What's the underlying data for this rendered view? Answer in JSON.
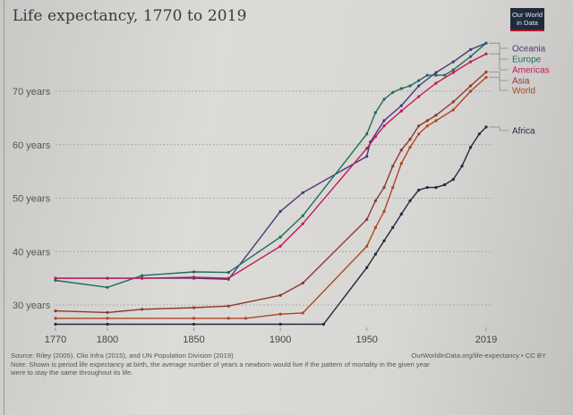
{
  "header": {
    "title": "Life expectancy, 1770 to 2019",
    "logo_line1": "Our World",
    "logo_line2": "in Data"
  },
  "footer": {
    "source": "Source: Riley (2005), Clio Infra (2015), and UN Population Division (2019)",
    "url": "OurWorldInData.org/life-expectancy • CC BY",
    "note_line1": "Note: Shown is period life expectancy at birth, the average number of years a newborn would live if the pattern of mortality in the given year",
    "note_line2": "were to stay the same throughout its life."
  },
  "chart_data": {
    "type": "line",
    "title": "Life expectancy, 1770 to 2019",
    "xlabel": "",
    "ylabel": "",
    "xlim": [
      1770,
      2019
    ],
    "ylim": [
      26,
      80
    ],
    "x_ticks": [
      1770,
      1800,
      1850,
      1900,
      1950,
      2019
    ],
    "y_ticks": [
      30,
      40,
      50,
      60,
      70
    ],
    "y_tick_labels": [
      "30 years",
      "40 years",
      "50 years",
      "60 years",
      "70 years"
    ],
    "grid": "horizontal dashed",
    "legend": "right (line-end labels)",
    "series": [
      {
        "name": "Oceania",
        "color": "#4a3a7a",
        "points": [
          [
            1770,
            35.0
          ],
          [
            1800,
            35.0
          ],
          [
            1820,
            35.0
          ],
          [
            1850,
            35.0
          ],
          [
            1870,
            34.8
          ],
          [
            1900,
            47.5
          ],
          [
            1913,
            51.0
          ],
          [
            1950,
            57.8
          ],
          [
            1952,
            60.5
          ],
          [
            1960,
            64.5
          ],
          [
            1970,
            67.3
          ],
          [
            1980,
            71.0
          ],
          [
            1990,
            73.5
          ],
          [
            2000,
            75.5
          ],
          [
            2010,
            77.8
          ],
          [
            2019,
            79.0
          ]
        ]
      },
      {
        "name": "Europe",
        "color": "#1f6b5c",
        "points": [
          [
            1770,
            34.6
          ],
          [
            1800,
            33.3
          ],
          [
            1820,
            35.5
          ],
          [
            1850,
            36.2
          ],
          [
            1870,
            36.1
          ],
          [
            1900,
            42.7
          ],
          [
            1913,
            46.7
          ],
          [
            1950,
            62.0
          ],
          [
            1955,
            66.0
          ],
          [
            1960,
            68.5
          ],
          [
            1965,
            69.8
          ],
          [
            1970,
            70.5
          ],
          [
            1975,
            71.0
          ],
          [
            1980,
            72.0
          ],
          [
            1985,
            73.0
          ],
          [
            1990,
            73.0
          ],
          [
            1995,
            73.0
          ],
          [
            2000,
            74.0
          ],
          [
            2010,
            76.5
          ],
          [
            2019,
            79.0
          ]
        ]
      },
      {
        "name": "Americas",
        "color": "#c2185b",
        "points": [
          [
            1770,
            35.0
          ],
          [
            1800,
            35.0
          ],
          [
            1820,
            35.0
          ],
          [
            1850,
            35.2
          ],
          [
            1870,
            35.0
          ],
          [
            1900,
            41.0
          ],
          [
            1913,
            45.2
          ],
          [
            1950,
            59.3
          ],
          [
            1955,
            61.5
          ],
          [
            1960,
            63.5
          ],
          [
            1970,
            66.3
          ],
          [
            1980,
            69.0
          ],
          [
            1990,
            71.5
          ],
          [
            2000,
            73.5
          ],
          [
            2010,
            75.5
          ],
          [
            2019,
            77.0
          ]
        ]
      },
      {
        "name": "Asia",
        "color": "#8b3a2e",
        "points": [
          [
            1770,
            28.9
          ],
          [
            1800,
            28.6
          ],
          [
            1820,
            29.2
          ],
          [
            1850,
            29.5
          ],
          [
            1870,
            29.8
          ],
          [
            1900,
            31.8
          ],
          [
            1913,
            34.1
          ],
          [
            1950,
            46.0
          ],
          [
            1955,
            49.5
          ],
          [
            1960,
            52.0
          ],
          [
            1965,
            56.0
          ],
          [
            1970,
            59.0
          ],
          [
            1975,
            61.0
          ],
          [
            1980,
            63.5
          ],
          [
            1985,
            64.5
          ],
          [
            1990,
            65.5
          ],
          [
            2000,
            68.0
          ],
          [
            2010,
            71.0
          ],
          [
            2019,
            73.6
          ]
        ]
      },
      {
        "name": "World",
        "color": "#b04522",
        "points": [
          [
            1770,
            27.5
          ],
          [
            1800,
            27.5
          ],
          [
            1850,
            27.5
          ],
          [
            1870,
            27.5
          ],
          [
            1880,
            27.5
          ],
          [
            1900,
            28.3
          ],
          [
            1913,
            28.5
          ],
          [
            1950,
            41.0
          ],
          [
            1955,
            44.5
          ],
          [
            1960,
            47.5
          ],
          [
            1965,
            52.0
          ],
          [
            1970,
            56.5
          ],
          [
            1975,
            59.5
          ],
          [
            1980,
            62.0
          ],
          [
            1985,
            63.5
          ],
          [
            1990,
            64.5
          ],
          [
            2000,
            66.5
          ],
          [
            2010,
            70.0
          ],
          [
            2019,
            72.6
          ]
        ]
      },
      {
        "name": "Africa",
        "color": "#1e2a3e",
        "points": [
          [
            1770,
            26.4
          ],
          [
            1800,
            26.4
          ],
          [
            1850,
            26.4
          ],
          [
            1900,
            26.4
          ],
          [
            1925,
            26.4
          ],
          [
            1950,
            37.0
          ],
          [
            1955,
            39.5
          ],
          [
            1960,
            42.0
          ],
          [
            1965,
            44.5
          ],
          [
            1970,
            47.0
          ],
          [
            1975,
            49.5
          ],
          [
            1980,
            51.5
          ],
          [
            1985,
            52.0
          ],
          [
            1990,
            52.0
          ],
          [
            1995,
            52.5
          ],
          [
            2000,
            53.5
          ],
          [
            2005,
            56.0
          ],
          [
            2010,
            59.5
          ],
          [
            2015,
            62.0
          ],
          [
            2019,
            63.3
          ]
        ]
      }
    ]
  }
}
